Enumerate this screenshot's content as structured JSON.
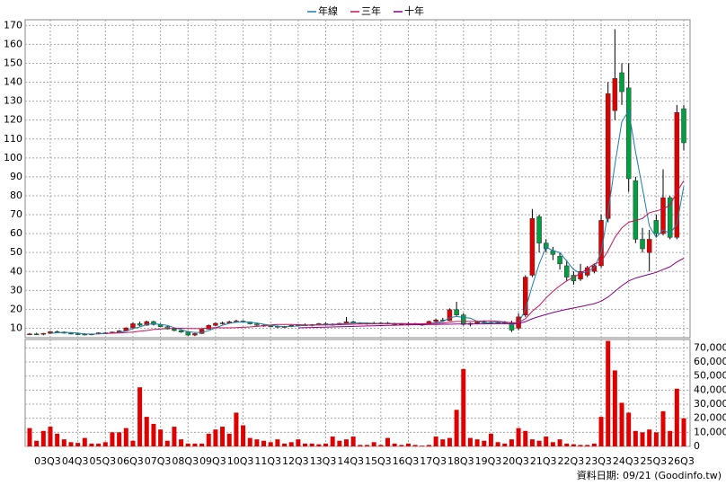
{
  "chart_data": [
    {
      "type": "candlestick",
      "legend": "top",
      "grid": true,
      "up_color": "#e00000",
      "down_color": "#00a040",
      "ylim": [
        5,
        173
      ],
      "yticks": [
        10,
        20,
        30,
        40,
        50,
        60,
        70,
        80,
        90,
        100,
        110,
        120,
        130,
        140,
        150,
        160,
        170
      ],
      "open": [
        7,
        7,
        6.8,
        7.3,
        8.2,
        8,
        7.4,
        7.1,
        6.9,
        6.6,
        7,
        7.6,
        7.4,
        8,
        8.6,
        10.2,
        12.4,
        11.6,
        13.5,
        12,
        10.8,
        9.6,
        8.8,
        8,
        6.4,
        7.2,
        9.5,
        11.5,
        12.6,
        12.8,
        13.4,
        13.8,
        13.3,
        12.3,
        11.6,
        11.2,
        11,
        10.6,
        10.9,
        11.5,
        11.8,
        11.6,
        11.9,
        12.4,
        12.1,
        11.8,
        12.6,
        13.4,
        12.8,
        12.3,
        12.7,
        12.5,
        12.8,
        12.4,
        12.2,
        12.5,
        12.3,
        11.9,
        12.1,
        13.6,
        14.4,
        14,
        19.8,
        17,
        12,
        12.6,
        13.3,
        12.8,
        13.1,
        13.2,
        13,
        10,
        17,
        38,
        69,
        55,
        51,
        48,
        43,
        38,
        36,
        38,
        40,
        43,
        68,
        125,
        145,
        137,
        88,
        57,
        50,
        67,
        60,
        79,
        58,
        126
      ],
      "high": [
        7.5,
        7.6,
        7.5,
        8.5,
        8.8,
        8.3,
        7.8,
        7.5,
        7.4,
        7.2,
        7.8,
        8,
        8.2,
        9,
        10.5,
        13,
        13.5,
        14,
        14,
        12.5,
        11.2,
        10,
        9.2,
        8.5,
        7.5,
        9.8,
        12,
        13,
        13.5,
        14,
        14.5,
        14.2,
        13.6,
        12.8,
        12,
        11.8,
        11.5,
        11.2,
        11.8,
        12.2,
        12.5,
        12.2,
        12.8,
        13,
        12.6,
        12.9,
        16,
        14,
        13.2,
        13,
        13.4,
        13.2,
        13.3,
        12.9,
        12.8,
        13.1,
        12.8,
        12.5,
        14,
        15,
        15.5,
        20.5,
        24,
        18,
        13,
        13.8,
        14.2,
        13.5,
        13.6,
        13.8,
        14,
        18,
        38,
        73,
        70,
        57,
        53,
        50,
        46,
        40,
        44,
        43,
        44,
        70,
        140,
        168,
        150,
        150,
        90,
        63,
        62,
        70,
        94,
        80,
        128,
        128
      ],
      "low": [
        6.5,
        6.4,
        6.3,
        7,
        7.8,
        7.2,
        6.8,
        6.5,
        6.2,
        6.3,
        6.8,
        7.2,
        7.1,
        7.8,
        8.4,
        10,
        11,
        11.3,
        11.5,
        10.5,
        9.3,
        8.4,
        7.6,
        6,
        5.8,
        7,
        9.3,
        11.2,
        12,
        12.4,
        13,
        13,
        12,
        11.2,
        10.8,
        10.6,
        10.2,
        10.3,
        10.6,
        11,
        11.3,
        11,
        11.5,
        11.8,
        11.4,
        11.6,
        12.3,
        12.5,
        12,
        11.9,
        12.2,
        12,
        12.1,
        11.8,
        11.7,
        12,
        11.6,
        11.3,
        11.9,
        13,
        13.5,
        13.8,
        16.5,
        11.5,
        11,
        12.2,
        12.5,
        12,
        12.5,
        12.2,
        8,
        9,
        16,
        37,
        50,
        50,
        46,
        41,
        35,
        33,
        35,
        37,
        39,
        42,
        66,
        120,
        128,
        82,
        55,
        50,
        40,
        58,
        59,
        57,
        57,
        104
      ],
      "close": [
        7,
        6.8,
        7.3,
        8.2,
        8,
        7.4,
        7.1,
        6.9,
        6.6,
        7,
        7.6,
        7.4,
        8,
        8.6,
        10.2,
        12.4,
        11.6,
        13.5,
        12,
        10.8,
        9.6,
        8.8,
        8,
        6.4,
        7.2,
        9.5,
        11.5,
        12.6,
        12.8,
        13.4,
        13.8,
        13.3,
        12.3,
        11.6,
        11.2,
        11,
        10.6,
        10.9,
        11.5,
        11.8,
        11.6,
        11.9,
        12.4,
        12.1,
        11.8,
        12.6,
        13.4,
        12.8,
        12.3,
        12.7,
        12.5,
        12.8,
        12.4,
        12.2,
        12.5,
        12.3,
        11.9,
        12.1,
        13.6,
        14.4,
        14,
        19.8,
        17,
        12,
        12.6,
        13.3,
        12.8,
        13.1,
        13.2,
        13,
        9,
        16,
        37,
        68,
        55,
        52,
        49,
        44,
        37,
        35,
        40,
        42,
        43,
        67,
        134,
        142,
        135,
        89,
        57,
        52,
        57,
        60,
        79,
        58,
        124,
        108
      ],
      "series": [
        {
          "name": "年線",
          "color": "#1a7fb0",
          "values": [
            null,
            null,
            null,
            7.3,
            7.6,
            7.7,
            7.7,
            7.4,
            7,
            6.9,
            7,
            7.2,
            7.4,
            7.9,
            8.5,
            9.8,
            10.7,
            12,
            12.4,
            12,
            11.5,
            10.3,
            9.3,
            8.2,
            7.8,
            7.8,
            8.7,
            10.2,
            11.6,
            12.6,
            13.2,
            13.3,
            13.2,
            12.8,
            12.1,
            11.5,
            11.1,
            10.9,
            11,
            11.2,
            11.5,
            11.7,
            11.9,
            12,
            12.1,
            12.2,
            12.5,
            12.7,
            12.8,
            12.8,
            12.6,
            12.6,
            12.6,
            12.5,
            12.5,
            12.4,
            12.2,
            12.2,
            12.5,
            13,
            13.5,
            15.5,
            16.3,
            15.7,
            15.3,
            13.7,
            12.7,
            13,
            13.2,
            13,
            12,
            12.8,
            19.8,
            32.5,
            44,
            53,
            51,
            50,
            45.5,
            41,
            39,
            40,
            42,
            50,
            71,
            96.5,
            119,
            125,
            103,
            84,
            64,
            58,
            62,
            60,
            65,
            85
          ]
        },
        {
          "name": "三年",
          "color": "#d0105a",
          "values": [
            null,
            null,
            null,
            null,
            null,
            null,
            null,
            null,
            null,
            null,
            null,
            7.3,
            7.4,
            7.5,
            7.7,
            8,
            8.4,
            8.8,
            9.3,
            9.6,
            9.8,
            10,
            10,
            9.9,
            9.8,
            9.9,
            10.1,
            10.3,
            10.2,
            10.2,
            10.3,
            10.5,
            10.7,
            11,
            11.3,
            11.7,
            12,
            12,
            12,
            11.9,
            11.8,
            11.7,
            11.7,
            11.7,
            11.8,
            11.9,
            12,
            12.1,
            12.2,
            12.3,
            12.4,
            12.4,
            12.4,
            12.4,
            12.4,
            12.4,
            12.4,
            12.4,
            12.5,
            12.6,
            12.7,
            13.2,
            13.6,
            13.6,
            13.6,
            13.7,
            13.8,
            13.9,
            13.7,
            13.3,
            12.9,
            13,
            15,
            19,
            22,
            26,
            29.5,
            32.5,
            35,
            37,
            39,
            41.5,
            44,
            45,
            51,
            58,
            63,
            66,
            67,
            68,
            71,
            72,
            73,
            75,
            82,
            88
          ]
        },
        {
          "name": "十年",
          "color": "#8a008a",
          "values": [
            null,
            null,
            null,
            null,
            null,
            null,
            null,
            null,
            null,
            null,
            null,
            null,
            null,
            null,
            null,
            null,
            null,
            null,
            null,
            null,
            null,
            null,
            null,
            null,
            null,
            null,
            null,
            null,
            null,
            null,
            null,
            null,
            null,
            null,
            null,
            null,
            null,
            null,
            null,
            10.2,
            10.3,
            10.4,
            10.5,
            10.6,
            10.7,
            10.8,
            10.9,
            11,
            11.1,
            11.2,
            11.3,
            11.4,
            11.5,
            11.6,
            11.7,
            11.8,
            11.9,
            11.9,
            12,
            12,
            12.1,
            12.1,
            12.2,
            12.2,
            12.3,
            12.3,
            12.3,
            12.4,
            12.4,
            12.4,
            12.4,
            12.5,
            13.5,
            15,
            16.2,
            17.3,
            18.3,
            19.2,
            20,
            20.7,
            21.4,
            22.2,
            23,
            24.3,
            26.5,
            29.5,
            32.5,
            35,
            36.5,
            37.5,
            38.5,
            39.5,
            41,
            42.5,
            45,
            47
          ]
        }
      ]
    },
    {
      "type": "bar",
      "color": "#e00000",
      "grid": true,
      "note": "資料日期: 09/21  (Goodinfo.tw)",
      "ylim": [
        0,
        76000
      ],
      "yticks": [
        0,
        {
          "value": 10000,
          "label": "10,000"
        },
        {
          "value": 20000,
          "label": "20,000"
        },
        {
          "value": 30000,
          "label": "30,000"
        },
        {
          "value": 40000,
          "label": "40,000"
        },
        {
          "value": 50000,
          "label": "50,000"
        },
        {
          "value": 60000,
          "label": "60,000"
        },
        {
          "value": 70000,
          "label": "70,000"
        }
      ],
      "categories": [
        null,
        null,
        null,
        "03Q3",
        null,
        null,
        null,
        "04Q3",
        null,
        null,
        null,
        "05Q3",
        null,
        null,
        null,
        "06Q3",
        null,
        null,
        null,
        "07Q3",
        null,
        null,
        null,
        "08Q3",
        null,
        null,
        null,
        "09Q3",
        null,
        null,
        null,
        "10Q3",
        null,
        null,
        null,
        "11Q3",
        null,
        null,
        null,
        "12Q3",
        null,
        null,
        null,
        "13Q3",
        null,
        null,
        null,
        "14Q3",
        null,
        null,
        null,
        "15Q3",
        null,
        null,
        null,
        "16Q3",
        null,
        null,
        null,
        "17Q3",
        null,
        null,
        null,
        "18Q3",
        null,
        null,
        null,
        "19Q3",
        null,
        null,
        null,
        "20Q3",
        null,
        null,
        null,
        "21Q3",
        null,
        null,
        null,
        "22Q3",
        null,
        null,
        null,
        "23Q3",
        null,
        null,
        null,
        "24Q3",
        null,
        null,
        null,
        "25Q3",
        null,
        null,
        null,
        "26Q3"
      ],
      "values": [
        13000,
        4000,
        11000,
        14000,
        9000,
        5000,
        3000,
        2500,
        6000,
        2000,
        2000,
        3000,
        10000,
        10000,
        13000,
        4000,
        42000,
        21000,
        16000,
        12000,
        4000,
        14000,
        5000,
        2000,
        2000,
        2000,
        9000,
        12000,
        14000,
        9000,
        24000,
        15000,
        6000,
        5000,
        4000,
        3000,
        5000,
        2000,
        3000,
        5000,
        2000,
        2000,
        1500,
        2000,
        7000,
        4000,
        5000,
        7000,
        1000,
        1000,
        3000,
        1000,
        6000,
        2000,
        1000,
        2000,
        1000,
        500,
        1000,
        7000,
        5000,
        6000,
        26000,
        55000,
        6000,
        5000,
        4000,
        9000,
        3000,
        2000,
        5000,
        13000,
        11000,
        5000,
        4000,
        7000,
        3000,
        5000,
        2000,
        1500,
        1000,
        1000,
        2000,
        21000,
        75000,
        54000,
        31000,
        24000,
        11000,
        10000,
        12000,
        10000,
        25000,
        11000,
        41000,
        20000
      ]
    }
  ]
}
